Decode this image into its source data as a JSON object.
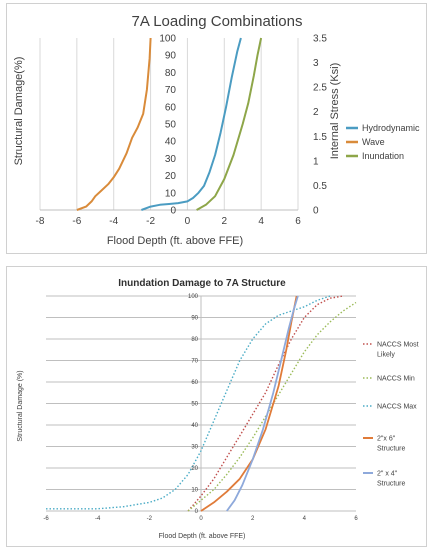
{
  "chart_data": [
    {
      "type": "line",
      "title": "7A Loading Combinations",
      "xlabel": "Flood Depth (ft. above FFE)",
      "ylabel": "Structural Damage(%)",
      "y2label": "Internal Stress (Ksi)",
      "xlim": [
        -8,
        6
      ],
      "ylim": [
        0,
        100
      ],
      "y2lim": [
        0,
        3.5
      ],
      "x_ticks": [
        "-8",
        "-6",
        "-4",
        "-2",
        "0",
        "2",
        "4",
        "6"
      ],
      "y_ticks": [
        "0",
        "10",
        "20",
        "30",
        "40",
        "50",
        "60",
        "70",
        "80",
        "90",
        "100"
      ],
      "y2_ticks": [
        "0",
        "0.5",
        "1",
        "1.5",
        "2",
        "2.5",
        "3",
        "3.5"
      ],
      "grid": "vertical",
      "legend": "right",
      "series": [
        {
          "name": "Hydrodynamic",
          "color": "#4b9cc2",
          "x": [
            -2.5,
            -2,
            -1.5,
            -1,
            -0.5,
            0,
            0.3,
            0.6,
            0.9,
            1.2,
            1.5,
            1.8,
            2.1,
            2.4,
            2.7,
            2.9
          ],
          "y": [
            0,
            2,
            3,
            3.5,
            4,
            5,
            7,
            10,
            14,
            22,
            32,
            45,
            60,
            77,
            92,
            100
          ]
        },
        {
          "name": "Wave",
          "color": "#d98b3a",
          "x": [
            -6,
            -5.5,
            -5.2,
            -5,
            -4.7,
            -4.3,
            -4,
            -3.7,
            -3.3,
            -3,
            -2.7,
            -2.4,
            -2.2,
            -2.05,
            -2
          ],
          "y": [
            0,
            2,
            5,
            8,
            11,
            15,
            19,
            24,
            33,
            42,
            48,
            56,
            70,
            88,
            100
          ]
        },
        {
          "name": "Inundation",
          "color": "#8ea649",
          "x": [
            0.5,
            1,
            1.5,
            2,
            2.5,
            3,
            3.3,
            3.6,
            3.8,
            4
          ],
          "y": [
            0,
            3,
            8,
            18,
            32,
            50,
            62,
            78,
            90,
            100
          ]
        }
      ]
    },
    {
      "type": "line",
      "title": "Inundation Damage to 7A Structure",
      "xlabel": "Flood Depth (ft. above FFE)",
      "ylabel": "Structural Damage (%)",
      "xlim": [
        -6,
        6
      ],
      "ylim": [
        0,
        100
      ],
      "x_ticks": [
        "-6",
        "-4",
        "-2",
        "0",
        "2",
        "4",
        "6"
      ],
      "y_ticks": [
        "0",
        "10",
        "20",
        "30",
        "40",
        "50",
        "60",
        "70",
        "80",
        "90",
        "100"
      ],
      "grid": "horizontal",
      "legend": "right",
      "series": [
        {
          "name": "NACCS Most Likely",
          "color": "#c0504d",
          "dash": "dotted",
          "x": [
            -0.5,
            0,
            0.5,
            1,
            1.5,
            2,
            2.5,
            3,
            3.5,
            4,
            4.5,
            5,
            5.5
          ],
          "y": [
            0,
            7,
            15,
            25,
            35,
            45,
            55,
            68,
            80,
            90,
            96,
            99,
            100
          ]
        },
        {
          "name": "NACCS Min",
          "color": "#9bbb59",
          "dash": "dotted",
          "x": [
            -0.5,
            0,
            0.5,
            1,
            1.5,
            2,
            2.5,
            3,
            3.5,
            4,
            4.5,
            5,
            5.5,
            6
          ],
          "y": [
            0,
            5,
            10,
            17,
            25,
            34,
            44,
            54,
            64,
            74,
            82,
            88,
            93,
            97
          ]
        },
        {
          "name": "NACCS Max",
          "color": "#4bacc6",
          "dash": "dotted",
          "x": [
            -6,
            -4,
            -3,
            -2,
            -1.5,
            -1,
            -0.5,
            0,
            0.5,
            1,
            1.5,
            2,
            2.5,
            3,
            3.5,
            4,
            4.5,
            5
          ],
          "y": [
            1,
            1,
            2,
            4,
            6,
            10,
            17,
            28,
            42,
            56,
            70,
            80,
            87,
            91,
            93,
            95,
            98,
            100
          ]
        },
        {
          "name": "2\"x 6\" Structure",
          "color": "#e07b39",
          "dash": "solid",
          "x": [
            0,
            0.5,
            1,
            1.5,
            2,
            2.5,
            3,
            3.3,
            3.5,
            3.7
          ],
          "y": [
            0,
            4,
            9,
            15,
            24,
            38,
            58,
            75,
            88,
            100
          ]
        },
        {
          "name": "2\" x 4\" Structure",
          "color": "#8ea9db",
          "dash": "solid",
          "x": [
            1,
            1.3,
            1.6,
            2,
            2.4,
            2.8,
            3.1,
            3.4,
            3.6,
            3.75
          ],
          "y": [
            0,
            5,
            12,
            24,
            38,
            55,
            70,
            85,
            94,
            100
          ]
        }
      ]
    }
  ]
}
